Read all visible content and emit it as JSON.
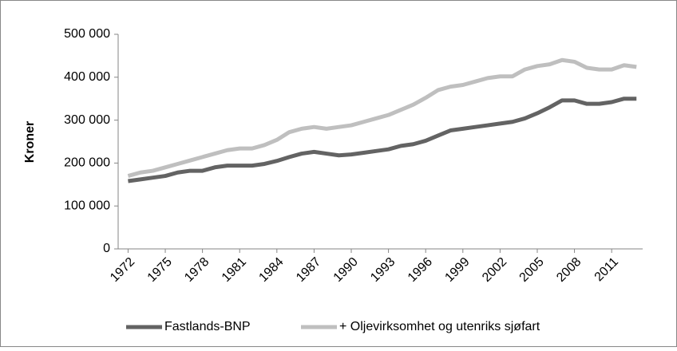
{
  "chart_data": {
    "type": "line",
    "y_label": "Kroner",
    "x": [
      1972,
      1973,
      1974,
      1975,
      1976,
      1977,
      1978,
      1979,
      1980,
      1981,
      1982,
      1983,
      1984,
      1985,
      1986,
      1987,
      1988,
      1989,
      1990,
      1991,
      1992,
      1993,
      1994,
      1995,
      1996,
      1997,
      1998,
      1999,
      2000,
      2001,
      2002,
      2003,
      2004,
      2005,
      2006,
      2007,
      2008,
      2009,
      2010,
      2011,
      2012,
      2013
    ],
    "series": [
      {
        "name": "Fastlands-BNP",
        "color": "#636363",
        "values": [
          158000,
          162000,
          166000,
          170000,
          178000,
          182000,
          182000,
          190000,
          194000,
          194000,
          194000,
          198000,
          205000,
          214000,
          222000,
          226000,
          222000,
          218000,
          220000,
          224000,
          228000,
          232000,
          240000,
          244000,
          252000,
          264000,
          276000,
          280000,
          284000,
          288000,
          292000,
          296000,
          304000,
          316000,
          330000,
          346000,
          346000,
          338000,
          338000,
          342000,
          350000,
          350000
        ]
      },
      {
        "name": "+ Oljevirksomhet og utenriks sjøfart",
        "color": "#bfbfbf",
        "values": [
          170000,
          178000,
          182000,
          190000,
          198000,
          206000,
          214000,
          222000,
          230000,
          234000,
          234000,
          242000,
          254000,
          272000,
          280000,
          284000,
          280000,
          284000,
          288000,
          296000,
          304000,
          312000,
          324000,
          336000,
          352000,
          370000,
          378000,
          382000,
          390000,
          398000,
          402000,
          402000,
          418000,
          426000,
          430000,
          440000,
          436000,
          422000,
          418000,
          418000,
          428000,
          424000
        ]
      }
    ],
    "xlim": [
      1971.2,
      2013.5
    ],
    "xticks": [
      1972,
      1975,
      1978,
      1981,
      1984,
      1987,
      1990,
      1993,
      1996,
      1999,
      2002,
      2005,
      2008,
      2011
    ],
    "ylim": [
      0,
      500000
    ],
    "yticks": [
      0,
      {
        "value": 100000,
        "label": "100 000"
      },
      {
        "value": 200000,
        "label": "200 000"
      },
      {
        "value": 300000,
        "label": "300 000"
      },
      {
        "value": 400000,
        "label": "400 000"
      },
      {
        "value": 500000,
        "label": "500 000"
      }
    ],
    "legend": "bottom"
  }
}
